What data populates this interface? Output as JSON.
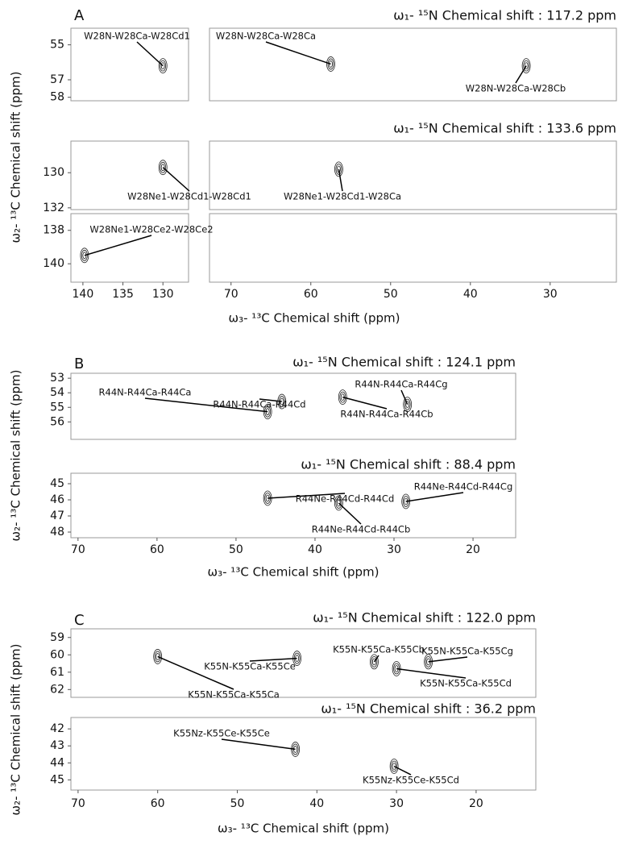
{
  "chart_data": [
    {
      "type": "scatter",
      "panel": "A",
      "xlabel": "ω₃- ¹³C Chemical shift (ppm)",
      "ylabel": "ω₂- ¹³C Chemical shift (ppm)",
      "xlim": [
        [
          141.5,
          126.8
        ],
        [
          72.7,
          21.7
        ]
      ],
      "xticks": [
        [
          140,
          135,
          130
        ],
        [
          70,
          60,
          50,
          40,
          30
        ]
      ],
      "subplots": [
        {
          "title": "ω₁- ¹⁵N Chemical shift : 117.2 ppm",
          "ylim": [
            54.05,
            58.2
          ],
          "yticks": [
            55,
            57,
            58
          ],
          "peaks": [
            {
              "x": 130,
              "y": 56.2,
              "label": "W28N-W28Ca-W28Cd1"
            },
            {
              "x": 57.5,
              "y": 56.1,
              "label": "W28N-W28Ca-W28Ca"
            },
            {
              "x": 33,
              "y": 56.2,
              "label": "W28N-W28Ca-W28Cb"
            }
          ]
        },
        {
          "title": "ω₁- ¹⁵N Chemical shift : 133.6 ppm",
          "ylim": [
            128.2,
            132.1
          ],
          "yticks": [
            130,
            132
          ],
          "peaks": [
            {
              "x": 130,
              "y": 129.7,
              "label": "W28Ne1-W28Cd1-W28Cd1"
            },
            {
              "x": 56.5,
              "y": 129.8,
              "label": "W28Ne1-W28Cd1-W28Ca"
            }
          ]
        },
        {
          "ylim": [
            137.0,
            141.1
          ],
          "yticks": [
            138,
            140
          ],
          "peaks": [
            {
              "x": 139.8,
              "y": 139.5,
              "label": "W28Ne1-W28Ce2-W28Ce2"
            }
          ]
        }
      ]
    },
    {
      "type": "scatter",
      "panel": "B",
      "xlabel": "ω₃- ¹³C Chemical shift (ppm)",
      "ylabel": "ω₂- ¹³C Chemical shift (ppm)",
      "xlim": [
        70.9,
        14.6
      ],
      "xticks": [
        70,
        60,
        50,
        40,
        30,
        20
      ],
      "subplots": [
        {
          "title": "ω₁- ¹⁵N Chemical shift : 124.1 ppm",
          "ylim": [
            52.66,
            57.2
          ],
          "yticks": [
            53,
            54,
            55,
            56
          ],
          "peaks": [
            {
              "x": 46,
              "y": 55.3,
              "label": "R44N-R44Ca-R44Ca"
            },
            {
              "x": 44.2,
              "y": 54.6,
              "label": "R44N-R44Ca-R44Cd"
            },
            {
              "x": 28.3,
              "y": 54.8,
              "label": "R44N-R44Ca-R44Cg"
            },
            {
              "x": 36.5,
              "y": 54.3,
              "label": "R44N-R44Ca-R44Cb"
            }
          ]
        },
        {
          "title": "ω₁- ¹⁵N Chemical shift : 88.4 ppm",
          "ylim": [
            44.35,
            48.35
          ],
          "yticks": [
            45,
            46,
            47,
            48
          ],
          "peaks": [
            {
              "x": 46,
              "y": 45.9,
              "label": "R44Ne-R44Cd-R44Cd"
            },
            {
              "x": 37,
              "y": 46.2,
              "label": "R44Ne-R44Cd-R44Cb"
            },
            {
              "x": 28.5,
              "y": 46.1,
              "label": "R44Ne-R44Cd-R44Cg"
            }
          ]
        }
      ]
    },
    {
      "type": "scatter",
      "panel": "C",
      "xlabel": "ω₃- ¹³C Chemical shift (ppm)",
      "ylabel": "ω₂- ¹³C Chemical shift (ppm)",
      "xlim": [
        70.9,
        12.5
      ],
      "xticks": [
        70,
        60,
        50,
        40,
        30,
        20
      ],
      "subplots": [
        {
          "title": "ω₁- ¹⁵N Chemical shift : 122.0 ppm",
          "ylim": [
            58.5,
            62.45
          ],
          "yticks": [
            59,
            60,
            61,
            62
          ],
          "peaks": [
            {
              "x": 42.5,
              "y": 60.2,
              "label": "K55N-K55Ca-K55Ce"
            },
            {
              "x": 60,
              "y": 60.1,
              "label": "K55N-K55Ca-K55Ca"
            },
            {
              "x": 32.8,
              "y": 60.4,
              "label": "K55N-K55Ca-K55Cb"
            },
            {
              "x": 26,
              "y": 60.4,
              "label": "K55N-K55Ca-K55Cg"
            },
            {
              "x": 30,
              "y": 60.8,
              "label": "K55N-K55Ca-K55Cd"
            }
          ]
        },
        {
          "title": "ω₁- ¹⁵N Chemical shift : 36.2 ppm",
          "ylim": [
            41.33,
            45.6
          ],
          "yticks": [
            42,
            43,
            44,
            45
          ],
          "peaks": [
            {
              "x": 42.7,
              "y": 43.2,
              "label": "K55Nz-K55Ce-K55Ce"
            },
            {
              "x": 30.3,
              "y": 44.2,
              "label": "K55Nz-K55Ce-K55Cd"
            }
          ]
        }
      ]
    }
  ]
}
